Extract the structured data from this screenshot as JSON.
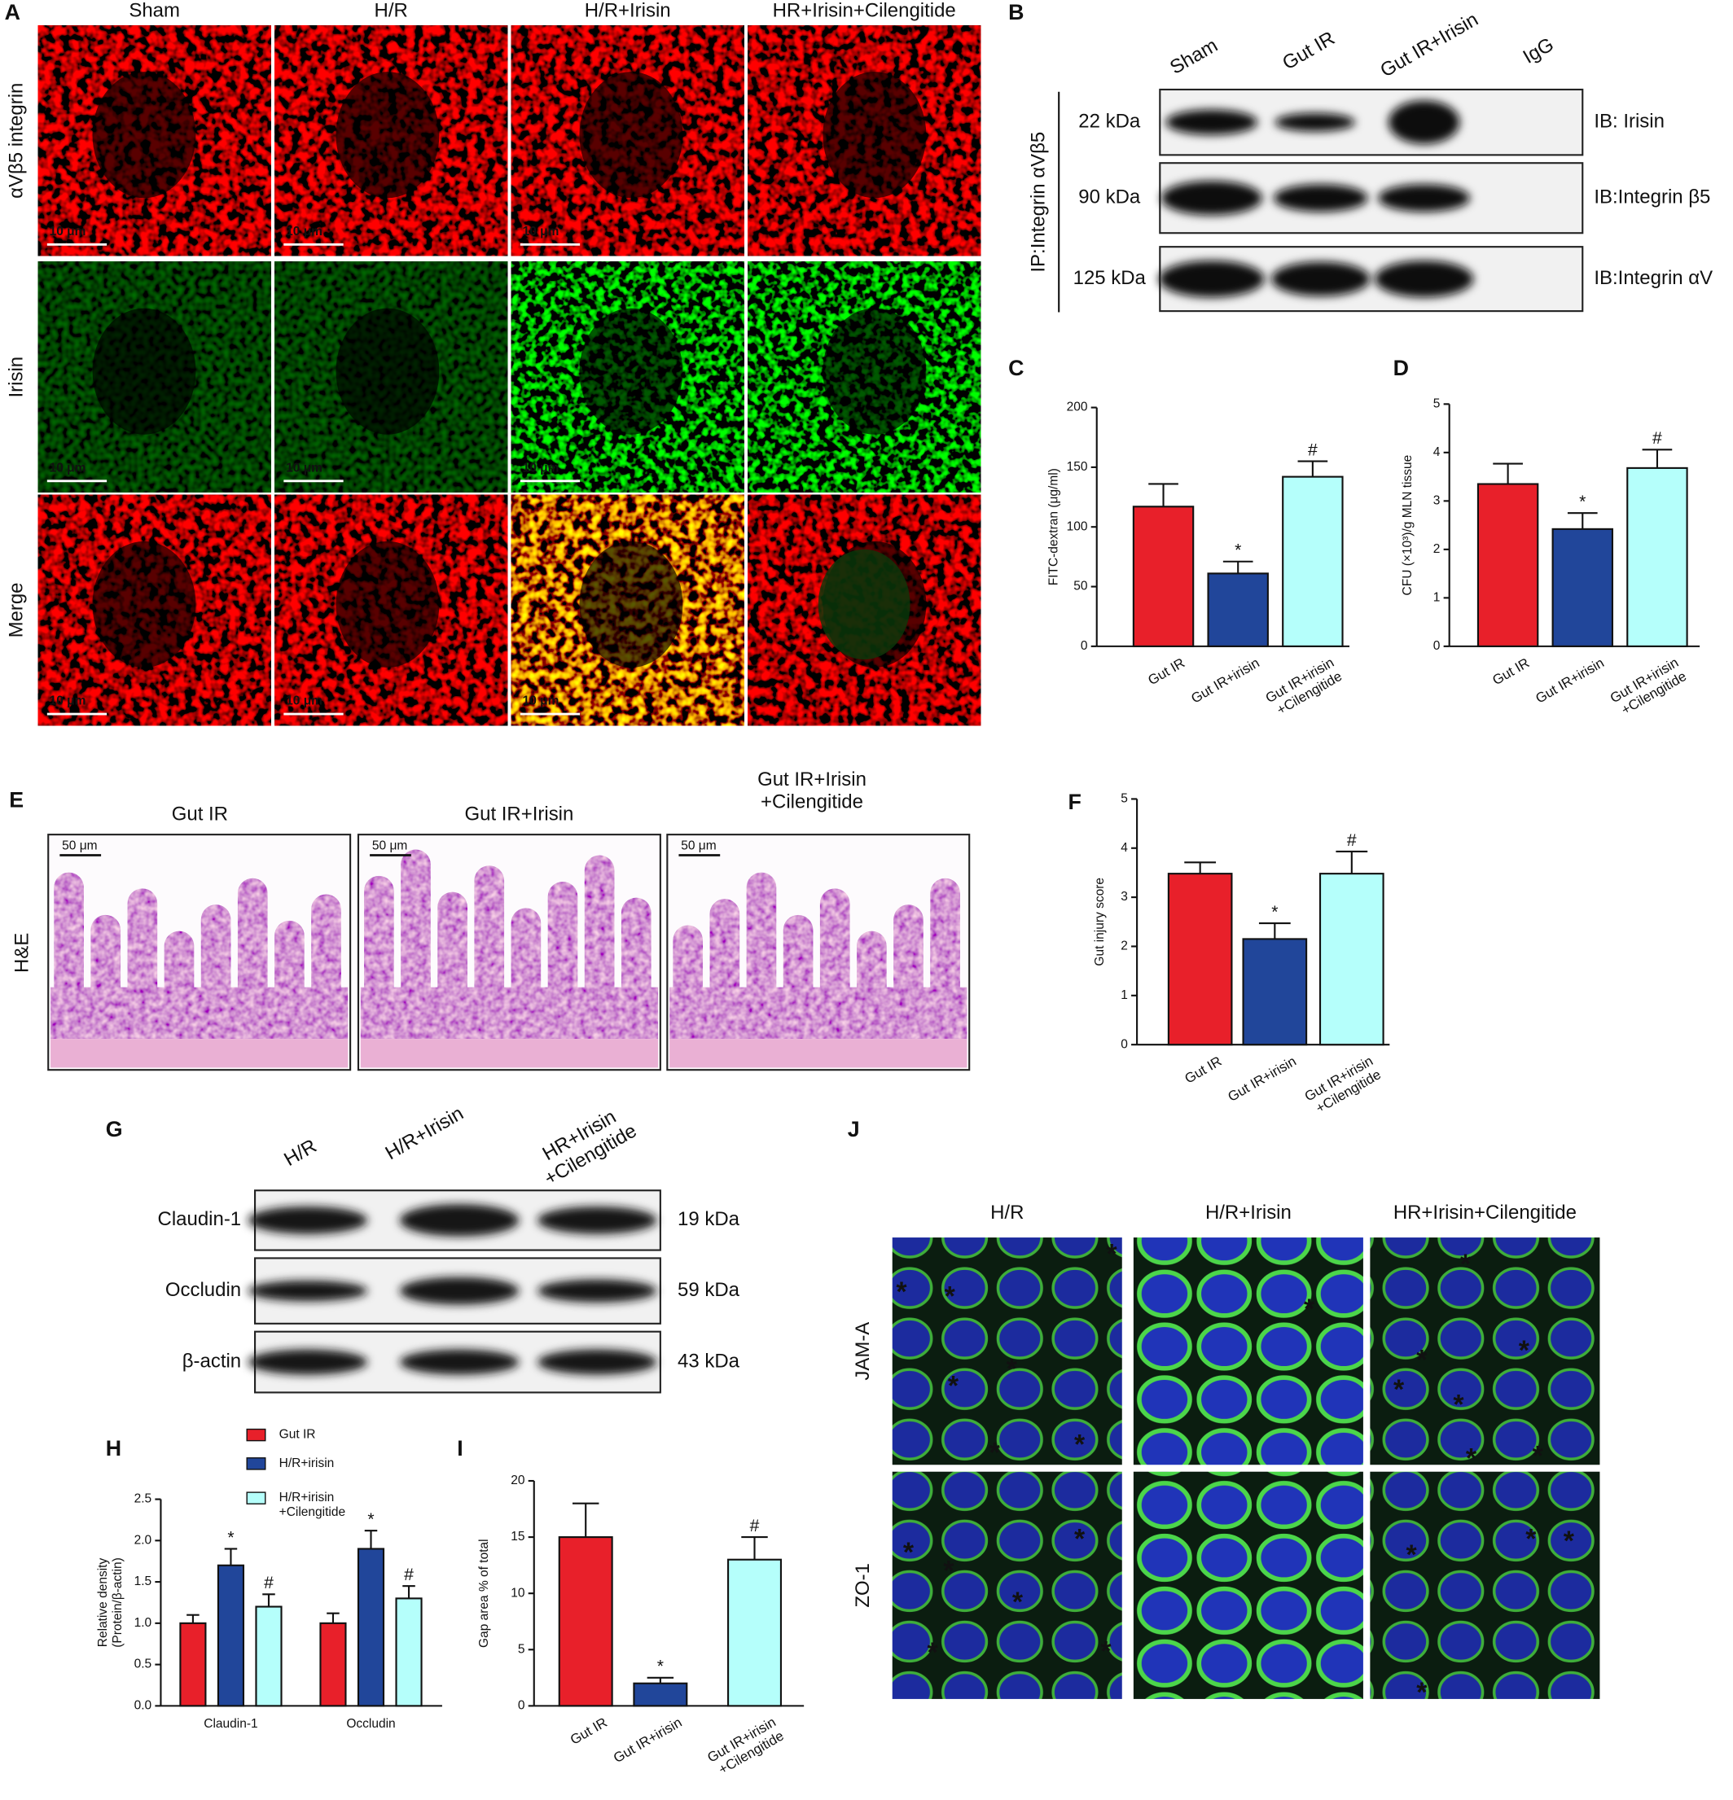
{
  "panel_a": {
    "label": "A",
    "columns": [
      "Sham",
      "H/R",
      "H/R+Irisin",
      "HR+Irisin+Cilengitide"
    ],
    "rows": [
      "αVβ5 integrin",
      "Irisin",
      "Merge"
    ],
    "scale_bar": "10 μm"
  },
  "panel_b": {
    "label": "B",
    "lanes": [
      "Sham",
      "Gut IR",
      "Gut IR+Irisin",
      "IgG"
    ],
    "ip": "IP:Integrin αVβ5",
    "rows": [
      {
        "size": "22 kDa",
        "ib": "IB: Irisin"
      },
      {
        "size": "90 kDa",
        "ib": "IB:Integrin β5"
      },
      {
        "size": "125 kDa",
        "ib": "IB:Integrin αV"
      }
    ]
  },
  "chart_data": [
    {
      "type": "bar",
      "label": "C",
      "y_label": "FITC-dextran (μg/ml)",
      "categories": [
        "Gut IR",
        "Gut IR+irisin",
        "Gut IR+irisin\n+Cilengitide"
      ],
      "values": [
        117,
        61,
        142
      ],
      "errors": [
        19,
        10,
        13
      ],
      "markers": [
        null,
        "*",
        "#"
      ],
      "colors": [
        "#e8202a",
        "#21469a",
        "#b5fffb"
      ],
      "ylim": [
        0,
        200
      ],
      "yticks": [
        0,
        50,
        100,
        150,
        200
      ]
    },
    {
      "type": "bar",
      "label": "D",
      "y_label": "CFU (×10³)/g MLN tissue",
      "categories": [
        "Gut IR",
        "Gut IR+irisin",
        "Gut IR+irisin\n+Cilengitide"
      ],
      "values": [
        3.35,
        2.42,
        3.68
      ],
      "errors": [
        0.42,
        0.33,
        0.38
      ],
      "markers": [
        null,
        "*",
        "#"
      ],
      "colors": [
        "#e8202a",
        "#21469a",
        "#b5fffb"
      ],
      "ylim": [
        0,
        5
      ],
      "yticks": [
        0,
        1,
        2,
        3,
        4,
        5
      ]
    },
    {
      "type": "bar",
      "label": "F",
      "y_label": "Gut injury score",
      "categories": [
        "Gut IR",
        "Gut IR+irisin",
        "Gut IR+irisin\n+Cilengitide"
      ],
      "values": [
        3.48,
        2.15,
        3.48
      ],
      "errors": [
        0.23,
        0.32,
        0.45
      ],
      "markers": [
        null,
        "*",
        "#"
      ],
      "colors": [
        "#e8202a",
        "#21469a",
        "#b5fffb"
      ],
      "ylim": [
        0,
        5
      ],
      "yticks": [
        0,
        1,
        2,
        3,
        4,
        5
      ]
    },
    {
      "type": "grouped_bar",
      "label": "H",
      "y_label": "Relative density\n(Protein/β-actin)",
      "categories": [
        "Claudin-1",
        "Occludin"
      ],
      "series": [
        {
          "name": "Gut IR",
          "color": "#e8202a",
          "values": [
            1.0,
            1.0
          ],
          "errors": [
            0.1,
            0.12
          ],
          "markers": [
            null,
            null
          ]
        },
        {
          "name": "H/R+irisin",
          "color": "#21469a",
          "values": [
            1.7,
            1.9
          ],
          "errors": [
            0.2,
            0.22
          ],
          "markers": [
            "*",
            "*"
          ]
        },
        {
          "name": "H/R+irisin\n+Cilengitide",
          "color": "#b5fffb",
          "values": [
            1.2,
            1.3
          ],
          "errors": [
            0.15,
            0.15
          ],
          "markers": [
            "#",
            "#"
          ]
        }
      ],
      "ylim": [
        0,
        2.5
      ],
      "yticks": [
        {
          "value": 0,
          "label": "0.0"
        },
        0.5,
        {
          "value": 1,
          "label": "1.0"
        },
        1.5,
        {
          "value": 2,
          "label": "2.0"
        },
        2.5
      ]
    },
    {
      "type": "bar",
      "label": "I",
      "y_label": "Gap area % of total",
      "categories": [
        "Gut IR",
        "Gut IR+irisin",
        "Gut IR+irisin\n+Cilengitide"
      ],
      "values": [
        15,
        2,
        13
      ],
      "errors": [
        3,
        0.5,
        2
      ],
      "markers": [
        null,
        "*",
        "#"
      ],
      "colors": [
        "#e8202a",
        "#21469a",
        "#b5fffb"
      ],
      "ylim": [
        0,
        20
      ],
      "yticks": [
        0,
        5,
        10,
        15,
        20
      ]
    }
  ],
  "panel_e": {
    "label": "E",
    "columns": [
      "Gut IR",
      "Gut IR+Irisin",
      "Gut IR+Irisin\n+Cilengitide"
    ],
    "row": "H&E",
    "scale_bar": "50 μm"
  },
  "panel_g": {
    "label": "G",
    "lanes": [
      "H/R",
      "H/R+Irisin",
      "HR+Irisin\n+Cilengitide"
    ],
    "rows": [
      {
        "name": "Claudin-1",
        "size": "19 kDa"
      },
      {
        "name": "Occludin",
        "size": "59 kDa"
      },
      {
        "name": "β-actin",
        "size": "43 kDa"
      }
    ]
  },
  "panel_j": {
    "label": "J",
    "columns": [
      "H/R",
      "H/R+Irisin",
      "HR+Irisin+Cilengitide"
    ],
    "rows": [
      "JAM-A",
      "ZO-1"
    ],
    "gap_marker": "*"
  }
}
